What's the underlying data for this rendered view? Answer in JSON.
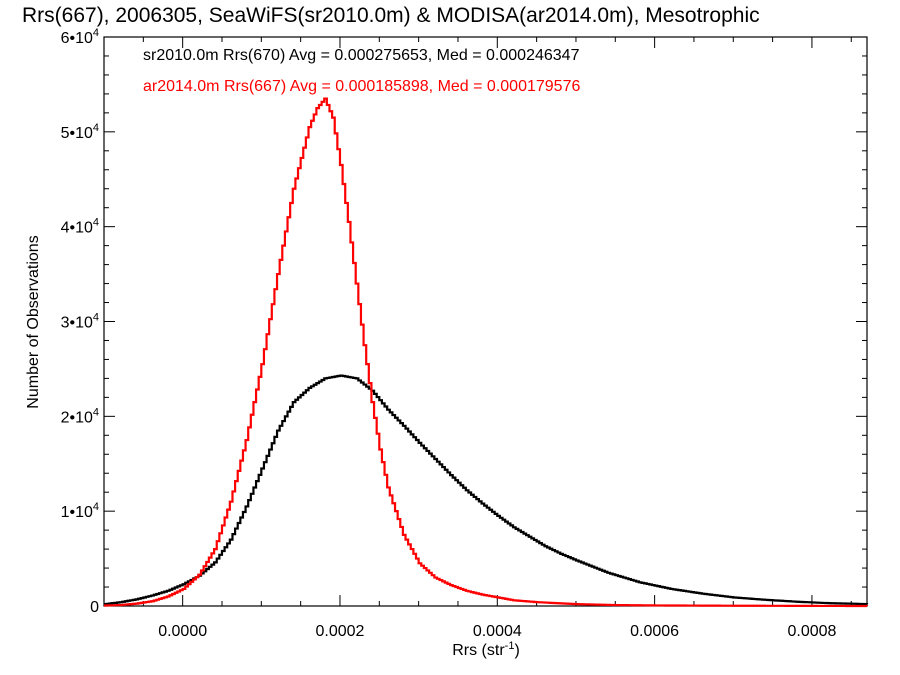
{
  "chart_data": {
    "type": "line",
    "title": "Rrs(667), 2006305, SeaWiFS(sr2010.0m) & MODISA(ar2014.0m), Mesotrophic",
    "xlabel": {
      "base": "Rrs (str",
      "sup": "-1",
      "close": ")"
    },
    "ylabel": "Number of Observations",
    "xlim": [
      -0.0001,
      0.00087
    ],
    "ylim": [
      0,
      60000
    ],
    "x_ticks": [
      {
        "value": 0.0,
        "label": "0.0000"
      },
      {
        "value": 0.0002,
        "label": "0.0002"
      },
      {
        "value": 0.0004,
        "label": "0.0004"
      },
      {
        "value": 0.0006,
        "label": "0.0006"
      },
      {
        "value": 0.0008,
        "label": "0.0008"
      }
    ],
    "y_ticks": [
      {
        "value": 0,
        "label": "0",
        "exp": ""
      },
      {
        "value": 10000,
        "label": "1•10",
        "exp": "4"
      },
      {
        "value": 20000,
        "label": "2•10",
        "exp": "4"
      },
      {
        "value": 30000,
        "label": "3•10",
        "exp": "4"
      },
      {
        "value": 40000,
        "label": "4•10",
        "exp": "4"
      },
      {
        "value": 50000,
        "label": "5•10",
        "exp": "4"
      },
      {
        "value": 60000,
        "label": "6•10",
        "exp": "4"
      }
    ],
    "x_minor_step": 5e-05,
    "y_minor_step": 2000,
    "grid": false,
    "series": [
      {
        "name": "sr2010.0m",
        "color": "#000000",
        "legend": "sr2010.0m Rrs(670) Avg = 0.000275653, Med = 0.000246347",
        "x": [
          -0.0001,
          -8e-05,
          -6e-05,
          -4e-05,
          -2e-05,
          0.0,
          2e-05,
          4e-05,
          6e-05,
          8e-05,
          0.0001,
          0.00012,
          0.00014,
          0.00016,
          0.00018,
          0.0002,
          0.00022,
          0.00024,
          0.00026,
          0.00028,
          0.0003,
          0.00032,
          0.00034,
          0.00036,
          0.00038,
          0.0004,
          0.00042,
          0.00044,
          0.00046,
          0.00048,
          0.0005,
          0.00054,
          0.00058,
          0.00062,
          0.00066,
          0.0007,
          0.00074,
          0.00078,
          0.00082,
          0.00087
        ],
        "y": [
          200,
          400,
          700,
          1100,
          1600,
          2300,
          3200,
          4600,
          7000,
          10500,
          14500,
          18500,
          21500,
          23000,
          24000,
          24300,
          24000,
          22700,
          20700,
          19000,
          17200,
          15500,
          13800,
          12200,
          10800,
          9500,
          8300,
          7300,
          6300,
          5500,
          4800,
          3500,
          2500,
          1800,
          1300,
          900,
          650,
          450,
          300,
          200
        ]
      },
      {
        "name": "ar2014.0m",
        "color": "#ff0000",
        "legend": "ar2014.0m Rrs(667) Avg = 0.000185898, Med = 0.000179576",
        "x": [
          -0.0001,
          -8e-05,
          -6e-05,
          -4e-05,
          -2e-05,
          0.0,
          2e-05,
          4e-05,
          6e-05,
          8e-05,
          0.0001,
          0.00012,
          0.00014,
          0.00016,
          0.00017,
          0.00018,
          0.00019,
          0.0002,
          0.00021,
          0.00022,
          0.00023,
          0.00024,
          0.00025,
          0.00026,
          0.00028,
          0.0003,
          0.00032,
          0.00034,
          0.00036,
          0.00038,
          0.0004,
          0.00042,
          0.00045,
          0.0005,
          0.00055,
          0.0006,
          0.0007,
          0.0008,
          0.00087
        ],
        "y": [
          50,
          100,
          250,
          500,
          1000,
          1800,
          3300,
          6000,
          11000,
          17500,
          25500,
          35000,
          44000,
          50500,
          52500,
          53500,
          51500,
          46500,
          40500,
          34000,
          27500,
          21500,
          16500,
          12500,
          7500,
          4500,
          3000,
          2200,
          1600,
          1200,
          900,
          600,
          400,
          200,
          100,
          60,
          30,
          10,
          0
        ]
      }
    ]
  }
}
